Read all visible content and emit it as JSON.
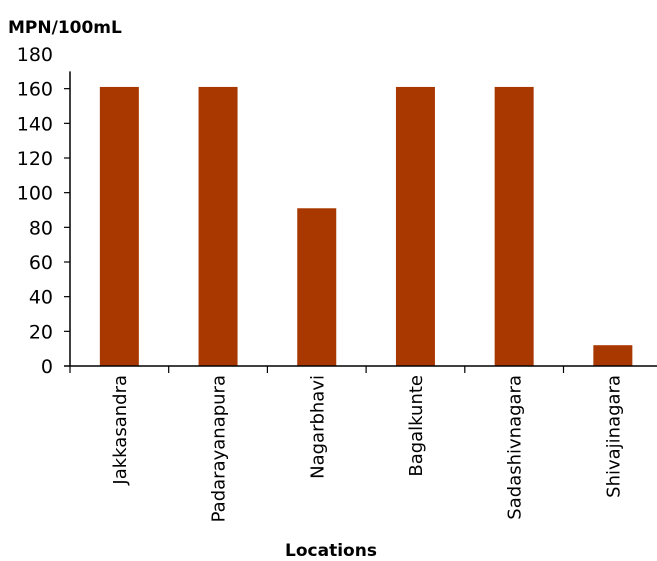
{
  "chart_data": {
    "type": "bar",
    "ylabel": "MPN/100mL",
    "xlabel": "Locations",
    "categories": [
      "Jakkasandra",
      "Padarayanapura",
      "Nagarbhavi",
      "Bagalkunte",
      "Sadashivnagara",
      "Shivajinagara"
    ],
    "values": [
      161,
      161,
      91,
      161,
      161,
      12
    ],
    "ylim": [
      0,
      180
    ],
    "yticks": [
      0,
      20,
      40,
      60,
      80,
      100,
      120,
      140,
      160,
      180
    ],
    "grid": false,
    "legend": "none",
    "bar_color": "#a83800"
  }
}
